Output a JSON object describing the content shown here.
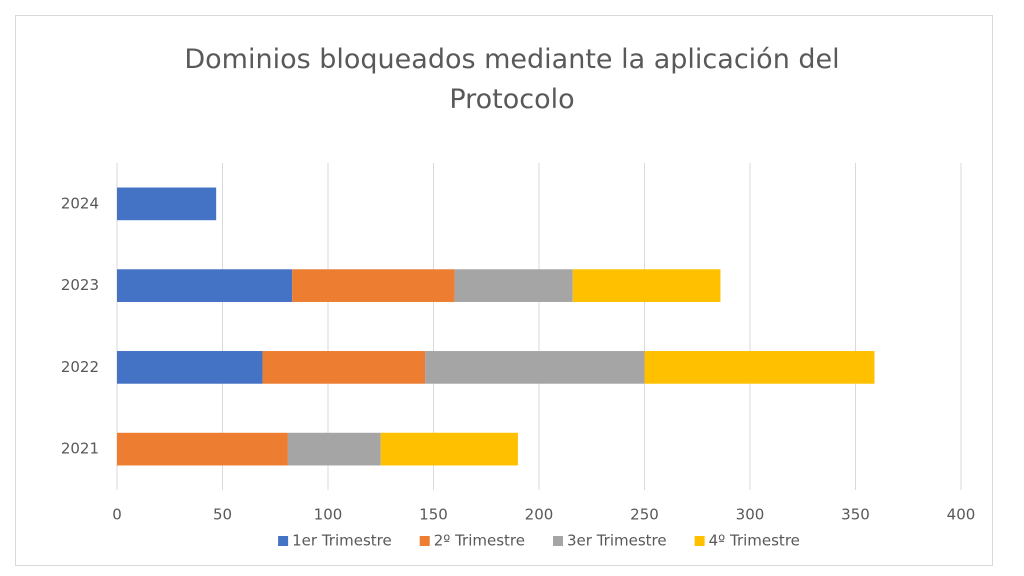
{
  "chart_data": {
    "type": "stacked-bar-horizontal",
    "title": "Dominios bloqueados mediante la aplicación del Protocolo",
    "categories": [
      "2021",
      "2022",
      "2023",
      "2024"
    ],
    "series": [
      {
        "name": "1er Trimestre",
        "color": "#4472c4",
        "values": [
          0,
          69,
          83,
          47
        ]
      },
      {
        "name": "2º Trimestre",
        "color": "#ed7d31",
        "values": [
          81,
          77,
          77,
          0
        ]
      },
      {
        "name": "3er Trimestre",
        "color": "#a5a5a5",
        "values": [
          44,
          104,
          56,
          0
        ]
      },
      {
        "name": "4º Trimestre",
        "color": "#ffc000",
        "values": [
          65,
          109,
          70,
          0
        ]
      }
    ],
    "xlim": [
      0,
      400
    ],
    "xticks": [
      0,
      50,
      100,
      150,
      200,
      250,
      300,
      350,
      400
    ],
    "grid": true,
    "legend": "bottom"
  }
}
